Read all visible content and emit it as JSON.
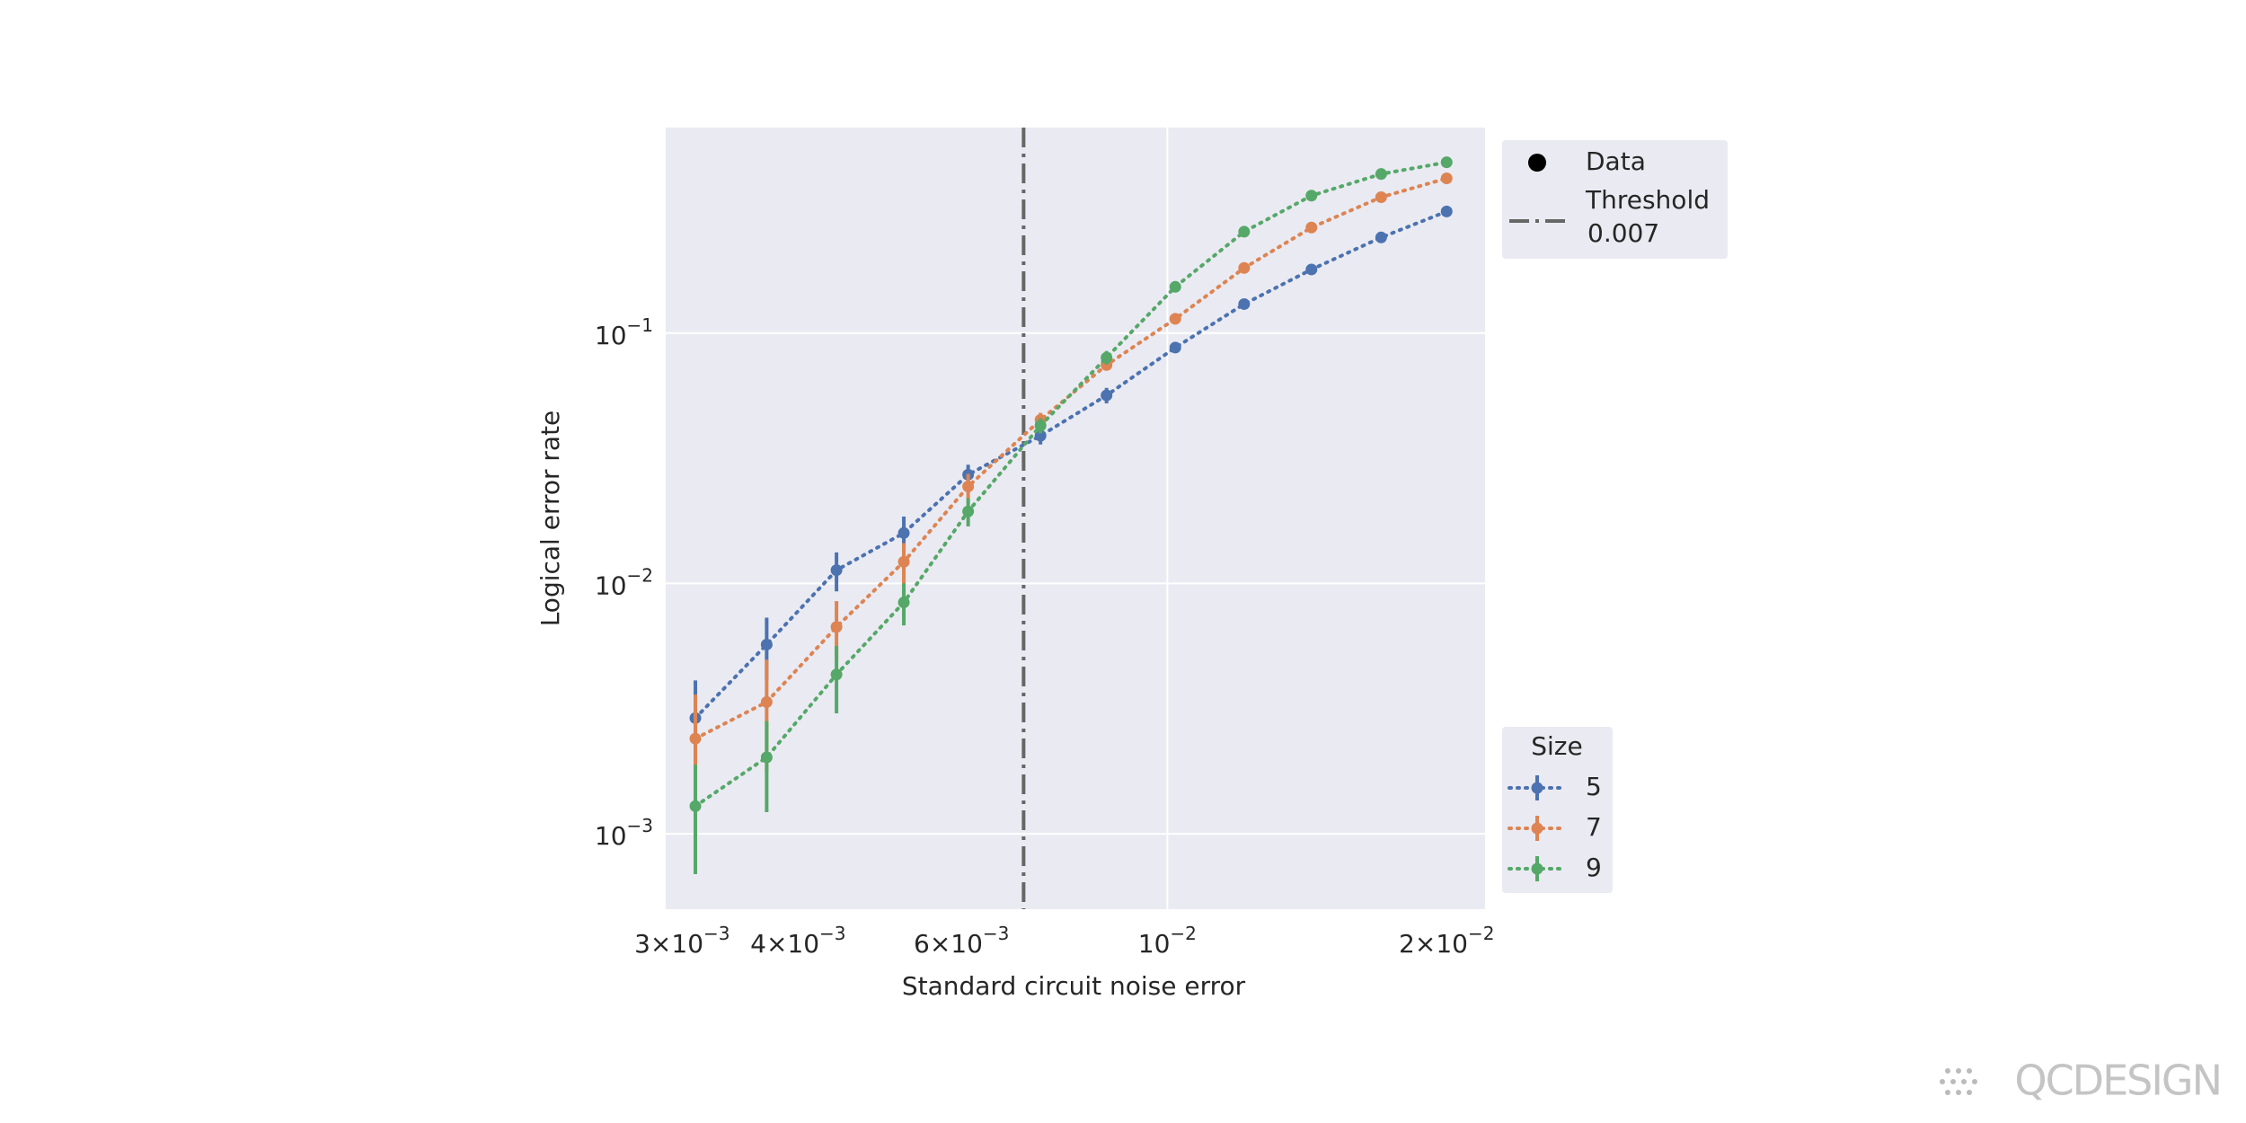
{
  "chart_data": {
    "type": "line",
    "xlabel": "Standard circuit noise error",
    "ylabel": "Logical error rate",
    "xscale": "log",
    "yscale": "log",
    "grid": true,
    "xlim": [
      0.00288,
      0.022
    ],
    "ylim": [
      0.0005,
      0.662
    ],
    "xticks": [
      {
        "value": 0.003,
        "label": "3×10−3"
      },
      {
        "value": 0.004,
        "label": "4×10−3"
      },
      {
        "value": 0.006,
        "label": "6×10−3"
      },
      {
        "value": 0.01,
        "label": "10−2"
      },
      {
        "value": 0.02,
        "label": "2×10−2"
      }
    ],
    "yticks": [
      {
        "value": 0.001,
        "label": "10−3"
      },
      {
        "value": 0.01,
        "label": "10−2"
      },
      {
        "value": 0.1,
        "label": "10−1"
      }
    ],
    "x": [
      0.0031,
      0.0037,
      0.0044,
      0.0052,
      0.0061,
      0.0073,
      0.0086,
      0.0102,
      0.0121,
      0.0143,
      0.017,
      0.02
    ],
    "series": [
      {
        "name": "5",
        "color": "#4c72b0",
        "values": [
          0.0029,
          0.0057,
          0.0113,
          0.0159,
          0.0272,
          0.0389,
          0.0564,
          0.0875,
          0.1306,
          0.1795,
          0.241,
          0.306
        ],
        "errors": [
          0.0012,
          0.0016,
          0.002,
          0.0026,
          0.0026,
          0.003,
          0.004,
          0.003,
          0.003,
          0.003,
          0.003,
          0.003
        ]
      },
      {
        "name": "7",
        "color": "#dd8452",
        "values": [
          0.0024,
          0.00336,
          0.0067,
          0.0122,
          0.0244,
          0.045,
          0.0746,
          0.114,
          0.182,
          0.264,
          0.349,
          0.415
        ],
        "errors": [
          0.0012,
          0.0016,
          0.0018,
          0.0023,
          0.003,
          0.003,
          0.003,
          0.003,
          0.003,
          0.003,
          0.003,
          0.003
        ]
      },
      {
        "name": "9",
        "color": "#55a868",
        "values": [
          0.00129,
          0.00202,
          0.00433,
          0.0084,
          0.0194,
          0.0427,
          0.0798,
          0.153,
          0.254,
          0.354,
          0.432,
          0.481
        ],
        "errors": [
          0.0006,
          0.0008,
          0.0013,
          0.0016,
          0.0025,
          0.003,
          0.005,
          0.004,
          0.003,
          0.003,
          0.003,
          0.003
        ]
      }
    ],
    "threshold": {
      "name": "Threshold",
      "value": 0.007,
      "color": "#666666"
    },
    "marker_legend": "Data",
    "legend_title": "Size",
    "legend_position": "right"
  },
  "watermark": "QCDESIGN"
}
